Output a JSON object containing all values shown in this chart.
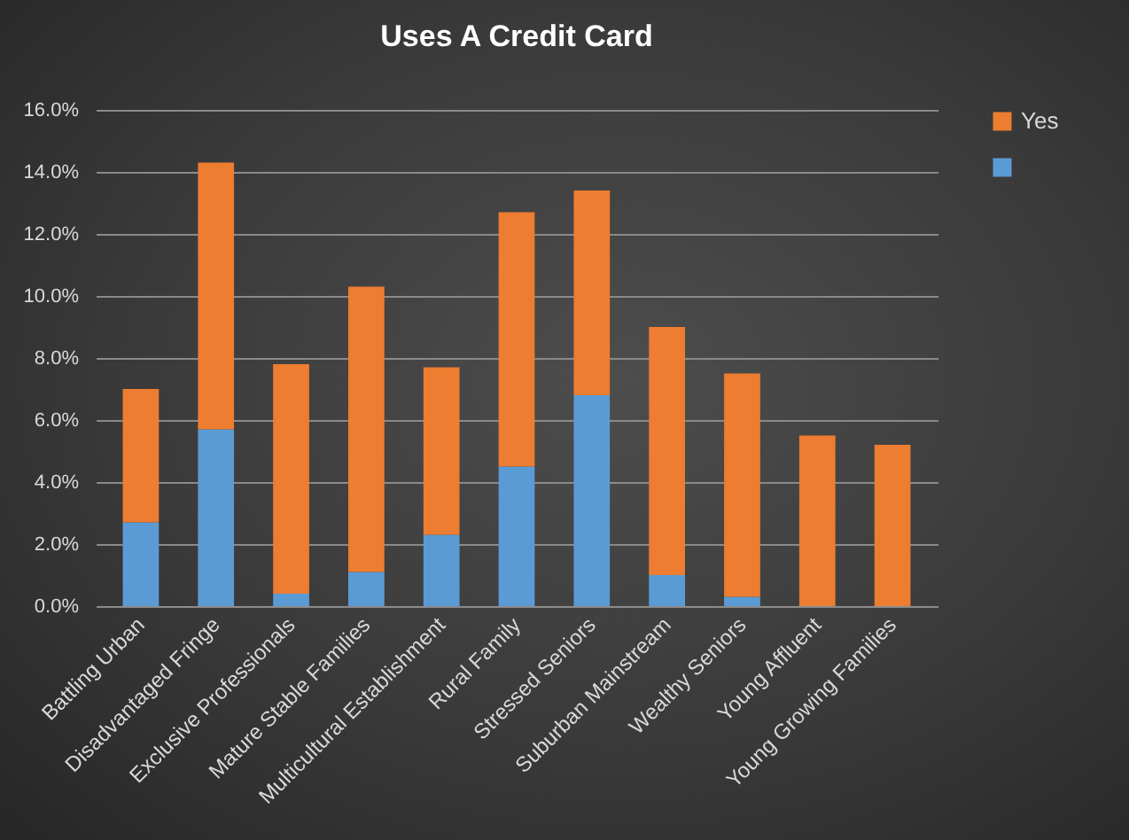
{
  "chart_data": {
    "type": "bar",
    "title": "Uses A Credit Card",
    "categories": [
      "Battling Urban",
      "Disadvantaged Fringe",
      "Exclusive Professionals",
      "Mature Stable Families",
      "Multicultural Establishment",
      "Rural Family",
      "Stressed Seniors",
      "Suburban Mainstream",
      "Wealthy Seniors",
      "Young Affluent",
      "Young Growing Families"
    ],
    "series": [
      {
        "color": "#5b9bd5",
        "values": [
          2.7,
          5.7,
          0.4,
          1.1,
          2.3,
          4.5,
          6.8,
          1.0,
          0.3,
          0,
          0
        ]
      },
      {
        "name": "Yes",
        "color": "#ed7d31",
        "values": [
          4.3,
          8.6,
          7.4,
          9.2,
          5.4,
          8.2,
          6.6,
          8.0,
          7.2,
          5.5,
          5.2
        ]
      }
    ],
    "stacked": true,
    "ylim": [
      0,
      16
    ],
    "yticks": [
      {
        "value": 0,
        "label": "0.0%"
      },
      {
        "value": 2,
        "label": "2.0%"
      },
      {
        "value": 4,
        "label": "4.0%"
      },
      {
        "value": 6,
        "label": "6.0%"
      },
      {
        "value": 8,
        "label": "8.0%"
      },
      {
        "value": 10,
        "label": "10.0%"
      },
      {
        "value": 12,
        "label": "12.0%"
      },
      {
        "value": 14,
        "label": "14.0%"
      },
      {
        "value": 16,
        "label": "16.0%"
      }
    ],
    "grid": "y",
    "legend": "right"
  }
}
